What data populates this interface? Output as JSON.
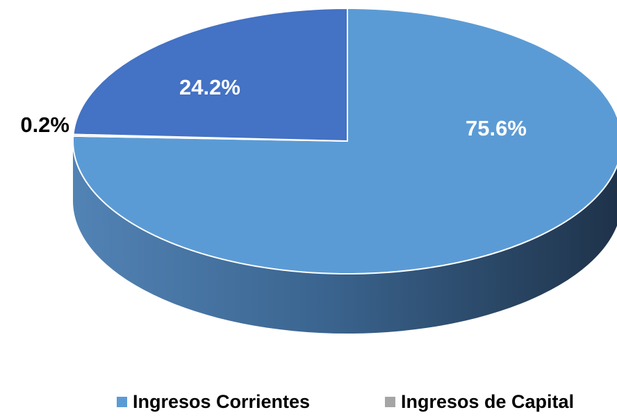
{
  "chart_data": {
    "type": "pie",
    "categories": [
      "Ingresos Corrientes",
      "Ingresos de Capital",
      null
    ],
    "values": [
      75.6,
      0.2,
      24.2
    ],
    "value_labels": [
      "75.6%",
      "0.2%",
      "24.2%"
    ],
    "colors": [
      "#5B9BD5",
      "#A5A5A5",
      "#4472C4"
    ],
    "legend": "bottom"
  }
}
